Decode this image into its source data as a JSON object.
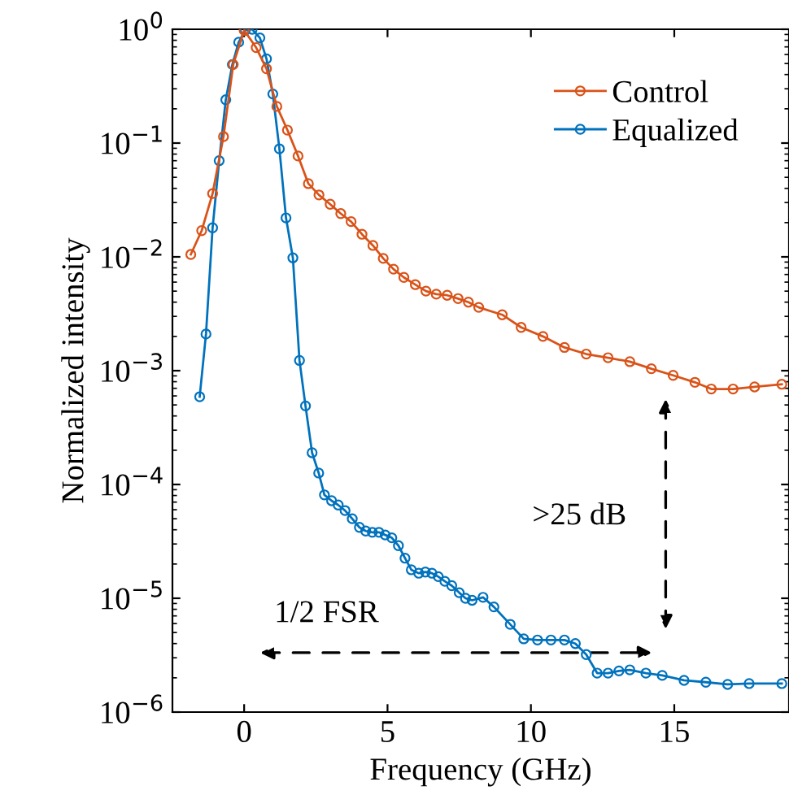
{
  "chart_data": {
    "type": "line",
    "xlabel": "Frequency (GHz)",
    "ylabel": "Normalized intensity",
    "log": "y",
    "xlim": [
      -2.5,
      19
    ],
    "xticks": [
      0,
      5,
      10,
      15
    ],
    "ylim": [
      1e-06,
      1
    ],
    "yticks": [
      {
        "value": 1e-06,
        "label": "10$^{−6}$"
      },
      {
        "value": 1e-05,
        "label": "10$^{−5}$"
      },
      {
        "value": 0.0001,
        "label": "10$^{−4}$"
      },
      {
        "value": 0.001,
        "label": "10$^{−3}$"
      },
      {
        "value": 0.01,
        "label": "10$^{−2}$"
      },
      {
        "value": 0.1,
        "label": "10$^{−1}$"
      },
      {
        "value": 1,
        "label": "10$^{0}$"
      }
    ],
    "marker": "circle",
    "line_style": "solid",
    "grid": false,
    "legend": "top right",
    "series": [
      {
        "name": "Control",
        "color": "#d95319",
        "x": [
          -1.86,
          -1.48,
          -1.1,
          -0.72,
          -0.38,
          0,
          0.42,
          0.78,
          1.14,
          1.51,
          1.88,
          2.24,
          2.61,
          3.0,
          3.37,
          3.73,
          4.11,
          4.49,
          4.85,
          5.21,
          5.57,
          5.97,
          6.34,
          6.7,
          7.08,
          7.46,
          7.82,
          8.18,
          9.0,
          9.66,
          10.42,
          11.17,
          11.93,
          12.69,
          13.45,
          14.2,
          14.96,
          15.72,
          16.29,
          17.05,
          17.8,
          18.75
        ],
        "values": [
          0.0105,
          0.017,
          0.036,
          0.114,
          0.49,
          0.98,
          0.69,
          0.45,
          0.21,
          0.13,
          0.077,
          0.044,
          0.035,
          0.029,
          0.024,
          0.0204,
          0.0158,
          0.0126,
          0.0097,
          0.0078,
          0.0066,
          0.0057,
          0.005,
          0.0047,
          0.0046,
          0.0043,
          0.004,
          0.0036,
          0.0031,
          0.0024,
          0.002,
          0.0016,
          0.0014,
          0.0013,
          0.0012,
          0.00104,
          0.00091,
          0.00079,
          0.00069,
          0.00069,
          0.00072,
          0.00076
        ]
      },
      {
        "name": "Equalized",
        "color": "#0072bd",
        "x": [
          -1.55,
          -1.33,
          -1.1,
          -0.87,
          -0.64,
          -0.41,
          -0.19,
          0.04,
          0.28,
          0.55,
          0.78,
          1.0,
          1.23,
          1.46,
          1.7,
          1.93,
          2.14,
          2.37,
          2.6,
          2.8,
          3.05,
          3.28,
          3.52,
          3.77,
          4.02,
          4.24,
          4.47,
          4.7,
          4.92,
          5.15,
          5.38,
          5.61,
          5.83,
          6.09,
          6.32,
          6.55,
          6.77,
          7.0,
          7.24,
          7.5,
          7.72,
          7.95,
          8.33,
          8.71,
          9.28,
          9.75,
          10.23,
          10.7,
          11.17,
          11.55,
          11.93,
          12.31,
          12.69,
          13.07,
          13.45,
          14.01,
          14.58,
          15.34,
          16.1,
          16.86,
          17.61,
          18.75
        ],
        "values": [
          0.00059,
          0.0021,
          0.018,
          0.07,
          0.24,
          0.49,
          0.77,
          0.98,
          1.0,
          0.84,
          0.55,
          0.27,
          0.089,
          0.022,
          0.0098,
          0.00123,
          0.00049,
          0.00019,
          0.000126,
          8.1e-05,
          7.2e-05,
          6.6e-05,
          5.9e-05,
          5e-05,
          4.2e-05,
          3.9e-05,
          3.8e-05,
          3.8e-05,
          3.6e-05,
          3.4e-05,
          2.9e-05,
          2.25e-05,
          1.78e-05,
          1.66e-05,
          1.7e-05,
          1.66e-05,
          1.55e-05,
          1.41e-05,
          1.29e-05,
          1.12e-05,
          1e-05,
          9.6e-06,
          1.02e-05,
          8.4e-06,
          5.9e-06,
          4.4e-06,
          4.3e-06,
          4.3e-06,
          4.3e-06,
          4e-06,
          3.2e-06,
          2.2e-06,
          2.2e-06,
          2.3e-06,
          2.35e-06,
          2.2e-06,
          2.1e-06,
          1.9e-06,
          1.83e-06,
          1.75e-06,
          1.78e-06,
          1.78e-06
        ]
      }
    ],
    "annotations": [
      "1/2 FSR",
      ">25 dB"
    ]
  }
}
